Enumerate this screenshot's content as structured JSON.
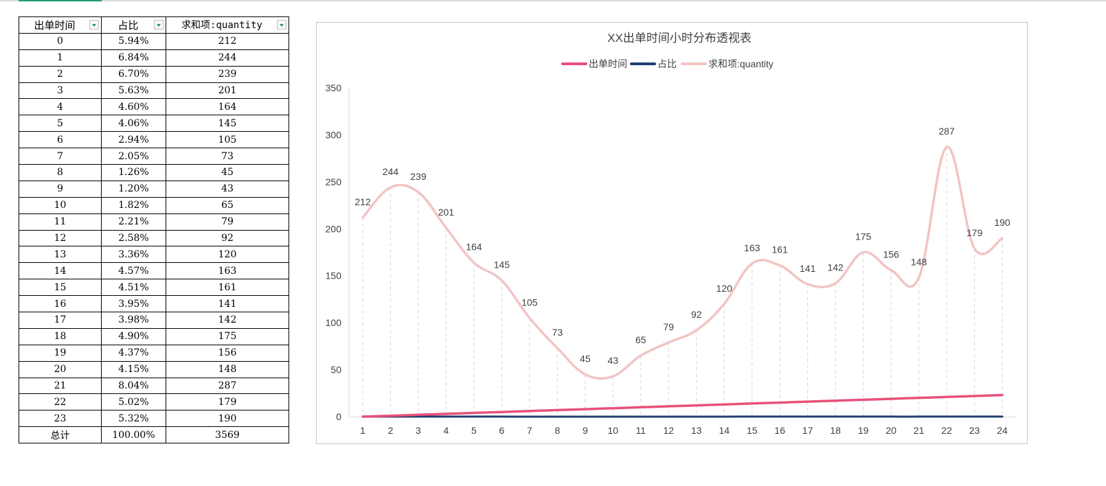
{
  "sheet_tab": {
    "active_color": "#1d9b6c"
  },
  "pivot_table": {
    "headers": [
      "出单时间",
      "占比",
      "求和项:quantity"
    ],
    "rows": [
      [
        "0",
        "5.94%",
        "212"
      ],
      [
        "1",
        "6.84%",
        "244"
      ],
      [
        "2",
        "6.70%",
        "239"
      ],
      [
        "3",
        "5.63%",
        "201"
      ],
      [
        "4",
        "4.60%",
        "164"
      ],
      [
        "5",
        "4.06%",
        "145"
      ],
      [
        "6",
        "2.94%",
        "105"
      ],
      [
        "7",
        "2.05%",
        "73"
      ],
      [
        "8",
        "1.26%",
        "45"
      ],
      [
        "9",
        "1.20%",
        "43"
      ],
      [
        "10",
        "1.82%",
        "65"
      ],
      [
        "11",
        "2.21%",
        "79"
      ],
      [
        "12",
        "2.58%",
        "92"
      ],
      [
        "13",
        "3.36%",
        "120"
      ],
      [
        "14",
        "4.57%",
        "163"
      ],
      [
        "15",
        "4.51%",
        "161"
      ],
      [
        "16",
        "3.95%",
        "141"
      ],
      [
        "17",
        "3.98%",
        "142"
      ],
      [
        "18",
        "4.90%",
        "175"
      ],
      [
        "19",
        "4.37%",
        "156"
      ],
      [
        "20",
        "4.15%",
        "148"
      ],
      [
        "21",
        "8.04%",
        "287"
      ],
      [
        "22",
        "5.02%",
        "179"
      ],
      [
        "23",
        "5.32%",
        "190"
      ]
    ],
    "total": [
      "总计",
      "100.00%",
      "3569"
    ],
    "filter_icon": "dropdown-filter-icon"
  },
  "chart_data": {
    "type": "line",
    "title": "XX出单时间小时分布透视表",
    "xlabel": "",
    "ylabel": "",
    "categories": [
      "1",
      "2",
      "3",
      "4",
      "5",
      "6",
      "7",
      "8",
      "9",
      "10",
      "11",
      "12",
      "13",
      "14",
      "15",
      "16",
      "17",
      "18",
      "19",
      "20",
      "21",
      "22",
      "23",
      "24"
    ],
    "yticks": [
      "0",
      "50",
      "100",
      "150",
      "200",
      "250",
      "300",
      "350"
    ],
    "ylim": [
      0,
      350
    ],
    "grid": "vertical dashed drop lines",
    "legend_position": "top",
    "smooth": true,
    "series": [
      {
        "name": "出单时间",
        "color": "#e8507a",
        "values": [
          0,
          1,
          2,
          3,
          4,
          5,
          6,
          7,
          8,
          9,
          10,
          11,
          12,
          13,
          14,
          15,
          16,
          17,
          18,
          19,
          20,
          21,
          22,
          23
        ]
      },
      {
        "name": "占比",
        "color": "#1f3f6e",
        "values": [
          0.0594,
          0.0684,
          0.067,
          0.0563,
          0.046,
          0.0406,
          0.0294,
          0.0205,
          0.0126,
          0.012,
          0.0182,
          0.0221,
          0.0258,
          0.0336,
          0.0457,
          0.0451,
          0.0395,
          0.0398,
          0.049,
          0.0437,
          0.0415,
          0.0804,
          0.0502,
          0.0532
        ]
      },
      {
        "name": "求和项:quantity",
        "color": "#f2c4c4",
        "values": [
          212,
          244,
          239,
          201,
          164,
          145,
          105,
          73,
          45,
          43,
          65,
          79,
          92,
          120,
          163,
          161,
          141,
          142,
          175,
          156,
          148,
          287,
          179,
          190
        ],
        "data_labels": true
      }
    ]
  }
}
